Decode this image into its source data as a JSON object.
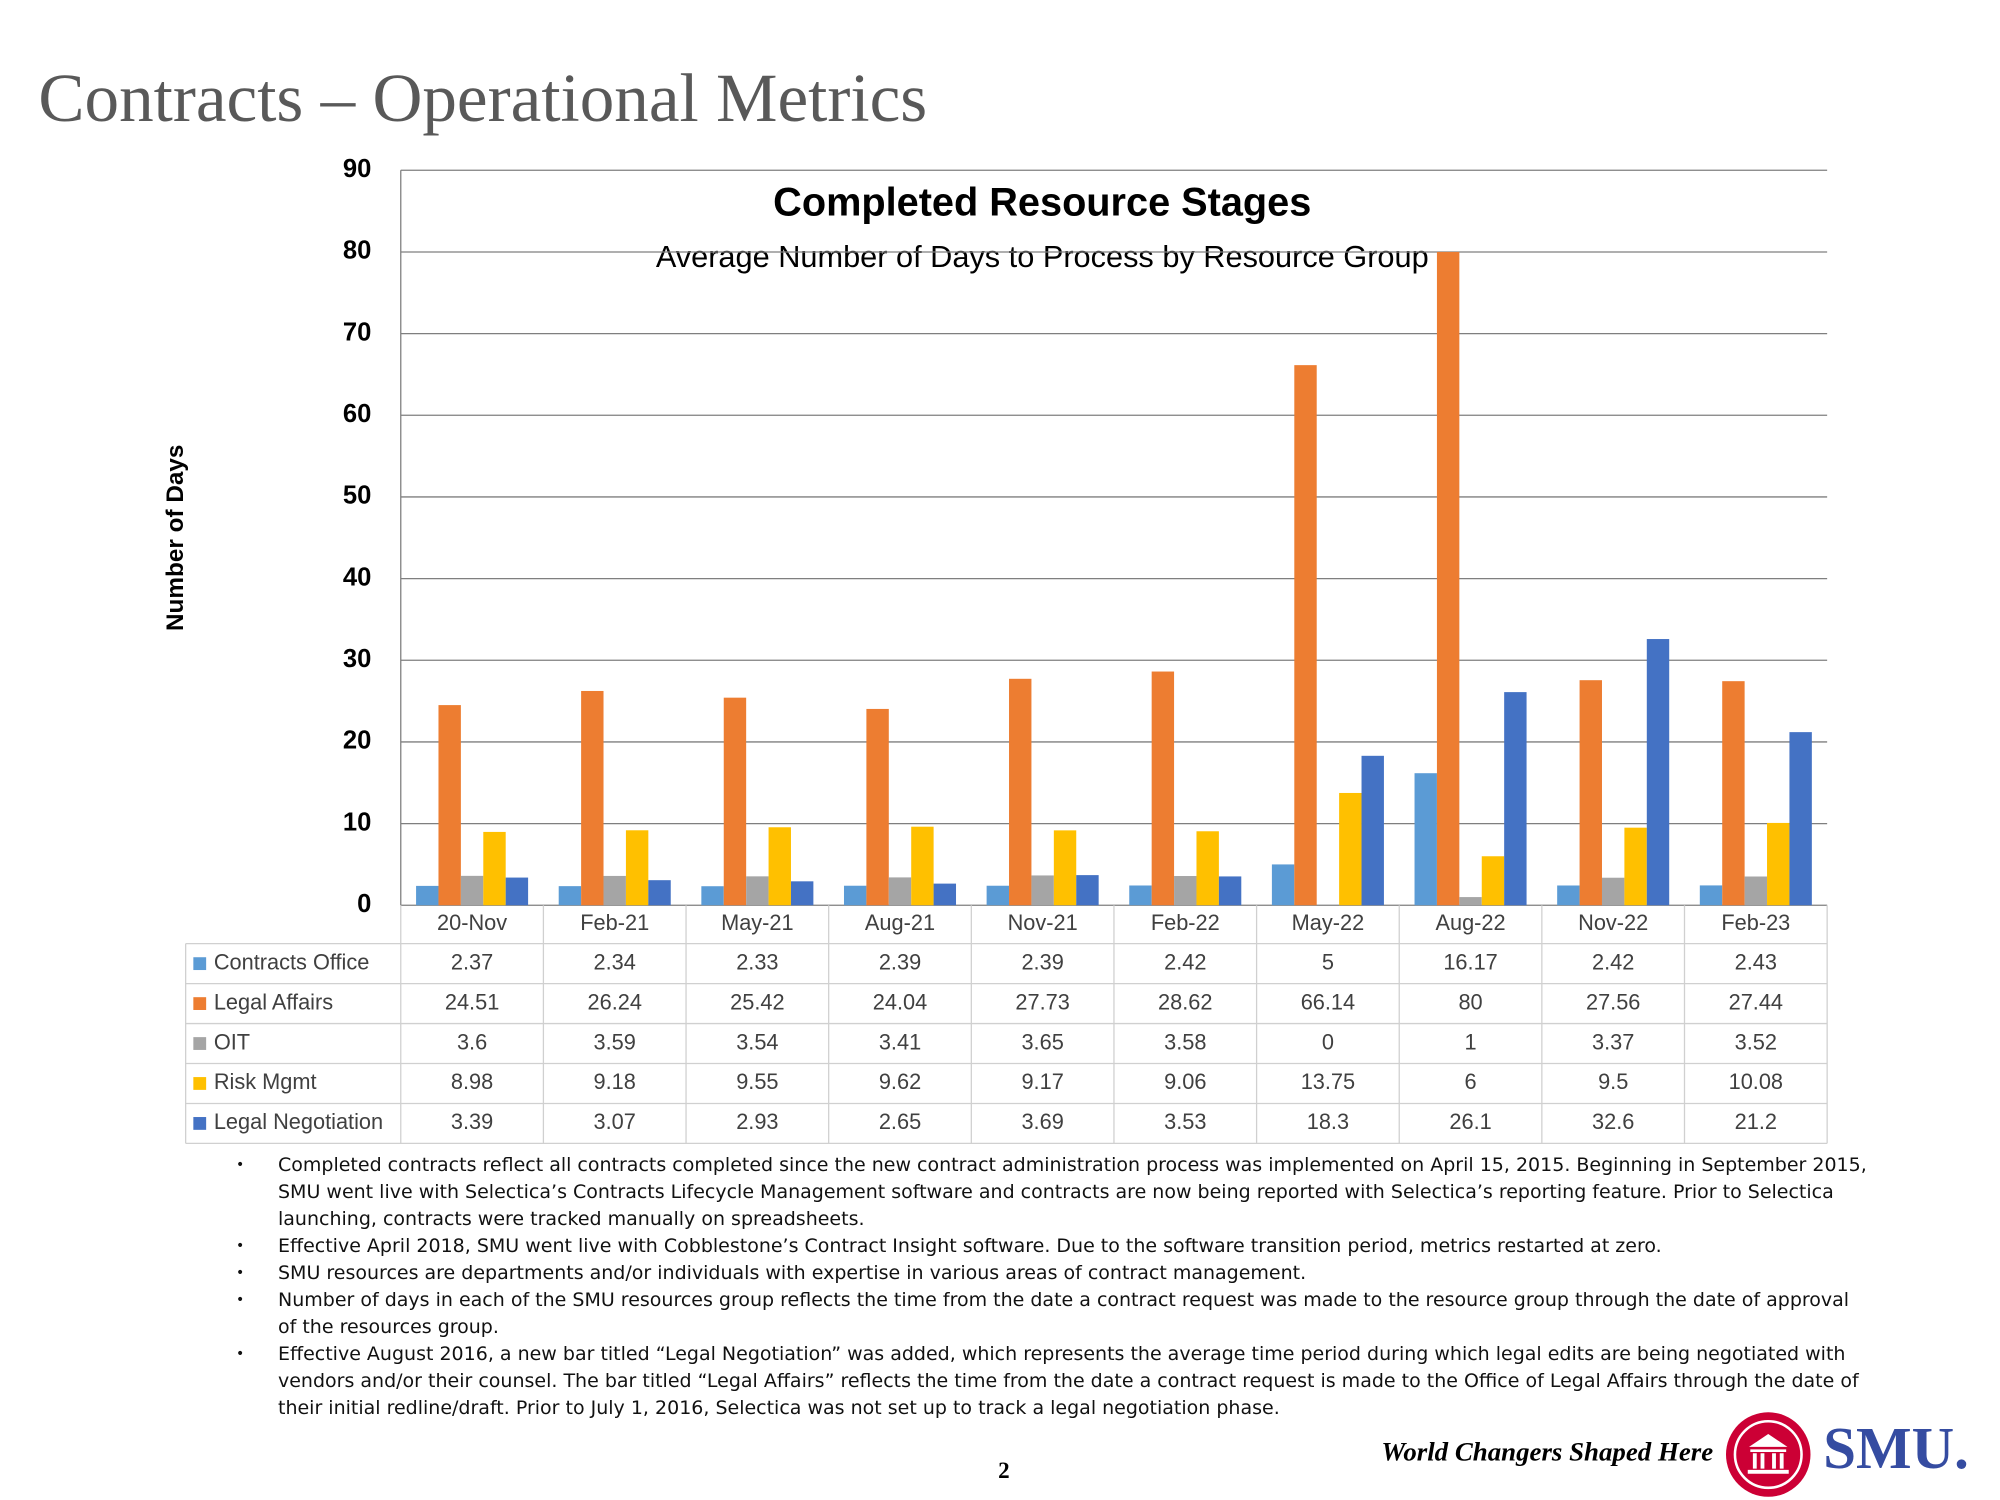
{
  "slide": {
    "title": "Contracts – Operational Metrics",
    "bullets": [
      "Completed contracts reflect all contracts completed since the new contract administration process was implemented on April 15, 2015. Beginning in September 2015, SMU went live with Selectica’s Contracts Lifecycle Management software and contracts are now being reported with Selectica’s reporting feature.  Prior to Selectica launching, contracts were tracked manually on spreadsheets.",
      "Effective April 2018, SMU went live with Cobblestone’s Contract Insight software. Due to the software transition period, metrics restarted at zero.",
      "SMU resources are departments and/or individuals with expertise in various areas of contract management.",
      "Number of days in each of the SMU resources group reflects the time from the date a contract request was made to the resource group through the date of approval of the resources group.",
      "Effective August 2016, a new bar titled “Legal Negotiation” was added, which represents the average time period during which legal edits are being negotiated with vendors and/or their counsel.  The bar titled “Legal Affairs” reflects the time from the date a contract request is made to the Office of Legal Affairs through the date of their initial redline/draft.  Prior to July 1, 2016, Selectica was not set up to track a legal negotiation phase."
    ],
    "page_number": "2",
    "tagline": "World Changers Shaped Here",
    "logo": "SMU."
  },
  "chart_data": {
    "type": "bar",
    "title": "Completed Resource Stages",
    "subtitle": "Average Number of Days to Process by Resource Group",
    "y_label": "Number of Days",
    "categories": [
      "20-Nov",
      "Feb-21",
      "May-21",
      "Aug-21",
      "Nov-21",
      "Feb-22",
      "May-22",
      "Aug-22",
      "Nov-22",
      "Feb-23"
    ],
    "series": [
      {
        "name": "Contracts Office",
        "color": "#5b9bd5",
        "values": [
          2.37,
          2.34,
          2.33,
          2.39,
          2.39,
          2.42,
          5,
          16.17,
          2.42,
          2.43
        ]
      },
      {
        "name": "Legal Affairs",
        "color": "#ed7d31",
        "values": [
          24.51,
          26.24,
          25.42,
          24.04,
          27.73,
          28.62,
          66.14,
          80,
          27.56,
          27.44
        ]
      },
      {
        "name": "OIT",
        "color": "#a5a5a5",
        "values": [
          3.6,
          3.59,
          3.54,
          3.41,
          3.65,
          3.58,
          0,
          1,
          3.37,
          3.52
        ]
      },
      {
        "name": "Risk Mgmt",
        "color": "#ffc000",
        "values": [
          8.98,
          9.18,
          9.55,
          9.62,
          9.17,
          9.06,
          13.75,
          6,
          9.5,
          10.08
        ]
      },
      {
        "name": "Legal Negotiation",
        "color": "#4472c4",
        "values": [
          3.39,
          3.07,
          2.93,
          2.65,
          3.69,
          3.53,
          18.3,
          26.1,
          32.6,
          21.2
        ]
      }
    ],
    "ylim": [
      0,
      90
    ],
    "yticks": [
      0,
      10,
      20,
      30,
      40,
      50,
      60,
      70,
      80,
      90
    ],
    "grid": true,
    "data_table": true
  }
}
